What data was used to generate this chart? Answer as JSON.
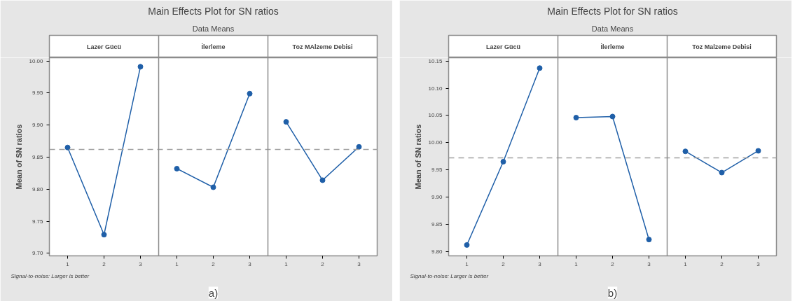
{
  "chart_data": [
    {
      "type": "line",
      "title": "Main Effects Plot for SN ratios",
      "subtitle": "Data Means",
      "ylabel": "Mean of SN ratios",
      "categories": [
        "1",
        "2",
        "3",
        "1",
        "2",
        "3",
        "1",
        "2",
        "3"
      ],
      "series": [
        {
          "color": "#1f5fa8",
          "values": [
            9.865,
            9.729,
            9.991,
            null,
            null,
            null,
            null,
            null,
            null
          ]
        },
        {
          "color": "#1f5fa8",
          "values": [
            null,
            null,
            null,
            9.832,
            9.803,
            9.949,
            null,
            null,
            null
          ]
        },
        {
          "color": "#1f5fa8",
          "values": [
            null,
            null,
            null,
            null,
            null,
            null,
            9.905,
            9.814,
            9.866
          ]
        }
      ],
      "ylim": [
        9.696,
        10.005
      ],
      "yticks": [
        {
          "value": 9.7,
          "label": "9.70"
        },
        {
          "value": 9.75,
          "label": "9.75"
        },
        {
          "value": 9.8,
          "label": "9.80"
        },
        {
          "value": 9.85,
          "label": "9.85"
        },
        {
          "value": 9.9,
          "label": "9.90"
        },
        {
          "value": 9.95,
          "label": "9.95"
        },
        {
          "value": 10.0,
          "label": "10.00"
        }
      ],
      "ref_lines": [
        {
          "axis": "y",
          "value": 9.862,
          "color": "#a0a0a0",
          "line_style": "dashed"
        }
      ],
      "annotations": [
        "Lazer Gücü",
        "İlerleme",
        "Toz MAlzeme Debisi",
        "Signal-to-noise: Larger is better",
        "a)"
      ],
      "marker": "circle",
      "line_style": "solid",
      "grid": false
    },
    {
      "type": "line",
      "title": "Main Effects Plot for SN ratios",
      "subtitle": "Data Means",
      "ylabel": "Mean of SN ratios",
      "categories": [
        "1",
        "2",
        "3",
        "1",
        "2",
        "3",
        "1",
        "2",
        "3"
      ],
      "series": [
        {
          "color": "#1f5fa8",
          "values": [
            9.812,
            9.965,
            10.137,
            null,
            null,
            null,
            null,
            null,
            null
          ]
        },
        {
          "color": "#1f5fa8",
          "values": [
            null,
            null,
            null,
            10.046,
            10.048,
            9.822,
            null,
            null,
            null
          ]
        },
        {
          "color": "#1f5fa8",
          "values": [
            null,
            null,
            null,
            null,
            null,
            null,
            9.984,
            9.945,
            9.985
          ]
        }
      ],
      "ylim": [
        9.792,
        10.156
      ],
      "yticks": [
        {
          "value": 9.8,
          "label": "9.80"
        },
        {
          "value": 9.85,
          "label": "9.85"
        },
        {
          "value": 9.9,
          "label": "9.90"
        },
        {
          "value": 9.95,
          "label": "9.95"
        },
        {
          "value": 10.0,
          "label": "10.00"
        },
        {
          "value": 10.05,
          "label": "10.05"
        },
        {
          "value": 10.1,
          "label": "10.10"
        },
        {
          "value": 10.15,
          "label": "10.15"
        }
      ],
      "ref_lines": [
        {
          "axis": "y",
          "value": 9.972,
          "color": "#a0a0a0",
          "line_style": "dashed"
        }
      ],
      "annotations": [
        "Lazer Gücü",
        "İlerleme",
        "Toz Malzeme Debisi",
        "Signal-to-noise: Larger is better",
        "b)"
      ],
      "marker": "circle",
      "line_style": "solid",
      "grid": false
    }
  ]
}
